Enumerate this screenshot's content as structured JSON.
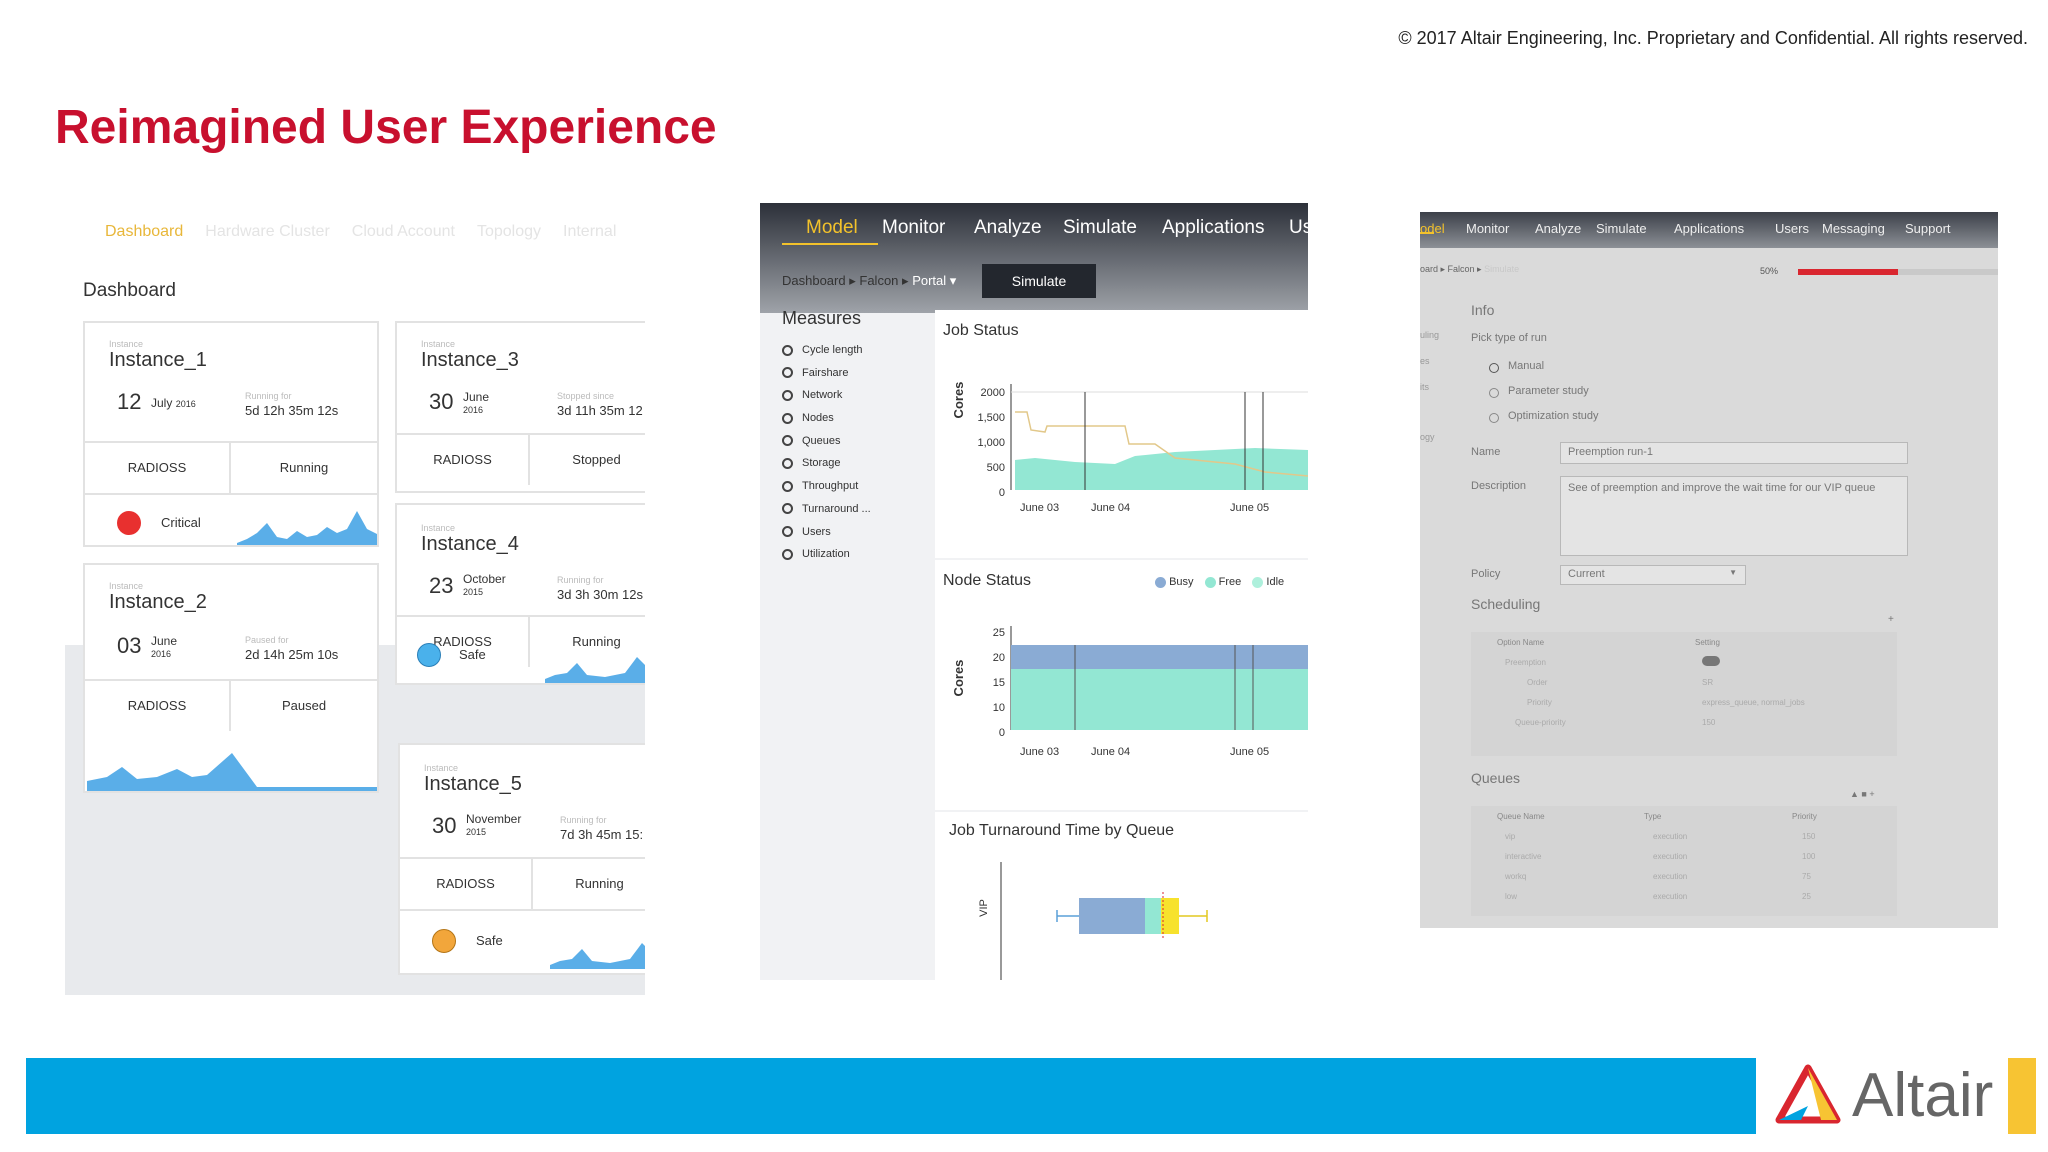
{
  "copyright": "© 2017 Altair Engineering, Inc. Proprietary and Confidential. All rights reserved.",
  "slide_title": "Reimagined User Experience",
  "panel1": {
    "tabs": [
      "Dashboard",
      "Hardware Cluster",
      "Cloud Account",
      "Topology",
      "Internal"
    ],
    "heading": "Dashboard",
    "cards": [
      {
        "label": "Instance",
        "name": "Instance_1",
        "day": "12",
        "month": "July",
        "year": "2016",
        "time_label": "Running for",
        "time_value": "5d 12h 35m 12s",
        "app": "RADIOSS",
        "state": "Running",
        "health": "Critical",
        "color": "#e8302f"
      },
      {
        "label": "Instance",
        "name": "Instance_2",
        "day": "03",
        "month": "June",
        "year": "2016",
        "time_label": "Paused for",
        "time_value": "2d 14h 25m 10s",
        "app": "RADIOSS",
        "state": "Paused"
      },
      {
        "label": "Instance",
        "name": "Instance_3",
        "day": "30",
        "month": "June",
        "year": "2016",
        "time_label": "Stopped since",
        "time_value": "3d 11h 35m 12",
        "app": "RADIOSS",
        "state": "Stopped"
      },
      {
        "label": "Instance",
        "name": "Instance_4",
        "day": "23",
        "month": "October",
        "year": "2015",
        "time_label": "Running for",
        "time_value": "3d 3h 30m 12s",
        "app": "RADIOSS",
        "state": "Running",
        "health": "Safe",
        "color": "#4ab1eb"
      },
      {
        "label": "Instance",
        "name": "Instance_5",
        "day": "30",
        "month": "November",
        "year": "2015",
        "time_label": "Running for",
        "time_value": "7d 3h 45m 15:",
        "app": "RADIOSS",
        "state": "Running",
        "health": "Safe",
        "color": "#f2a63b"
      }
    ]
  },
  "panel2": {
    "nav": [
      "Model",
      "Monitor",
      "Analyze",
      "Simulate",
      "Applications",
      "Us"
    ],
    "breadcrumb": {
      "a": "Dashboard",
      "sep": "▸",
      "b": "Falcon",
      "c": "Portal ▾"
    },
    "simulate_button": "Simulate",
    "measures_title": "Measures",
    "measures": [
      "Cycle length",
      "Fairshare",
      "Network",
      "Nodes",
      "Queues",
      "Storage",
      "Throughput",
      "Turnaround ...",
      "Users",
      "Utilization"
    ],
    "job_status_title": "Job Status",
    "node_status_title": "Node Status",
    "turnaround_title": "Job Turnaround Time by Queue",
    "legend": [
      "Busy",
      "Free",
      "Idle"
    ],
    "colors": {
      "busy": "#8aabd4",
      "free": "#93e7d3",
      "idle": "#aef0dc",
      "line": "#e2c88a",
      "yellow": "#f7e22d"
    }
  },
  "chart_data": [
    {
      "type": "area",
      "title": "Job Status",
      "ylabel": "Cores",
      "ylim": [
        0,
        2000
      ],
      "yticks": [
        "2000",
        "1,500",
        "1,000",
        "500",
        "0"
      ],
      "xticks": [
        "June 03",
        "June 04",
        "June 05"
      ],
      "series": []
    },
    {
      "type": "area",
      "title": "Node Status",
      "ylabel": "Cores",
      "ylim": [
        0,
        25
      ],
      "yticks": [
        "25",
        "20",
        "15",
        "10",
        "0"
      ],
      "xticks": [
        "June 03",
        "June 04",
        "June 05"
      ],
      "series": [
        {
          "name": "Busy",
          "values": [
            5
          ]
        },
        {
          "name": "Free",
          "values": [
            20
          ]
        }
      ]
    },
    {
      "type": "bar",
      "title": "Job Turnaround Time by Queue",
      "ylabel": "VIP",
      "categories": [
        "VIP"
      ]
    }
  ],
  "panel3": {
    "nav": [
      "odel",
      "Monitor",
      "Analyze",
      "Simulate",
      "Applications",
      "Users",
      "Messaging",
      "Support"
    ],
    "breadcrumb": {
      "a": "oard ▸ Falcon ▸",
      "b": "Simulate"
    },
    "progress_label": "50%",
    "progress": 0.5,
    "side_items": [
      "uling",
      "es",
      "its",
      "ogy"
    ],
    "info_title": "Info",
    "pick_label": "Pick type of run",
    "run_types": [
      "Manual",
      "Parameter study",
      "Optimization study"
    ],
    "name_label": "Name",
    "name_value": "Preemption run-1",
    "description_label": "Description",
    "description_value": "See of preemption and improve the wait time for our VIP queue",
    "policy_label": "Policy",
    "policy_value": "Current",
    "scheduling_title": "Scheduling",
    "sched_headers": [
      "Option Name",
      "Setting"
    ],
    "sched_rows": [
      [
        "Preemption",
        ""
      ],
      [
        "Order",
        "SR"
      ],
      [
        "Priority",
        "express_queue, normal_jobs"
      ],
      [
        "Queue-priority",
        "150"
      ]
    ],
    "queues_title": "Queues",
    "queue_headers": [
      "Queue Name",
      "Type",
      "Priority"
    ],
    "queue_rows": [
      [
        "vip",
        "execution",
        "150"
      ],
      [
        "interactive",
        "execution",
        "100"
      ],
      [
        "workq",
        "execution",
        "75"
      ],
      [
        "low",
        "execution",
        "25"
      ]
    ]
  },
  "footer": {
    "logo": "Altair"
  }
}
